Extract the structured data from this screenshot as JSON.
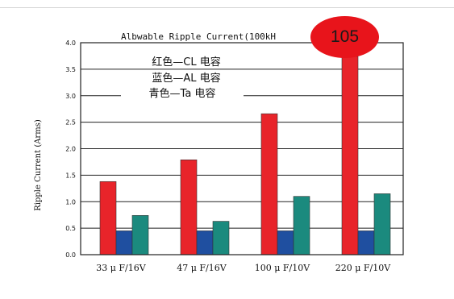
{
  "page": {
    "badge_text": "105"
  },
  "chart_data": {
    "type": "bar",
    "title": "Albwable Ripple Current(100kH",
    "ylabel": "Ripple Current (Arms)",
    "xlabel": "",
    "categories": [
      "33 μ F/16V",
      "47 μ F/16V",
      "100 μ F/10V",
      "220 μ F/10V"
    ],
    "series": [
      {
        "name": "红色—CL 电容",
        "color": "#e8242a",
        "values": [
          1.38,
          1.79,
          2.66,
          3.74
        ]
      },
      {
        "name": "蓝色—AL 电容",
        "color": "#1f4fa0",
        "values": [
          0.45,
          0.45,
          0.45,
          0.45
        ]
      },
      {
        "name": "青色—Ta 电容",
        "color": "#1b8a7e",
        "values": [
          0.74,
          0.63,
          1.1,
          1.15
        ]
      }
    ],
    "ylim": [
      0,
      4.0
    ],
    "yticks": [
      "0.0",
      "0.5",
      "1.0",
      "1.5",
      "2.0",
      "2.5",
      "3.0",
      "3.5",
      "4.0"
    ],
    "grid": true,
    "legend_position": "top-left"
  }
}
